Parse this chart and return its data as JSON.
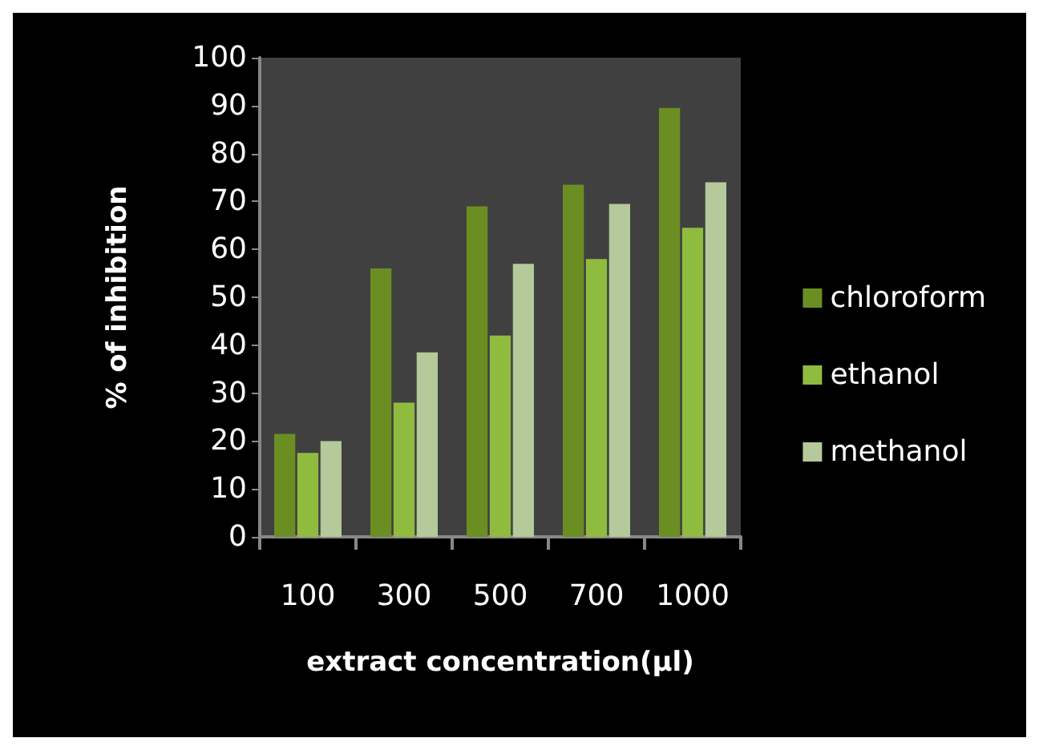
{
  "chart_data": {
    "type": "bar",
    "xlabel": "extract concentration(µl)",
    "ylabel": "% of inhibition",
    "categories": [
      "100",
      "300",
      "500",
      "700",
      "1000"
    ],
    "series": [
      {
        "name": "chloroform",
        "color": "#6b8e23",
        "values": [
          21.5,
          56,
          69,
          73.5,
          89.5
        ]
      },
      {
        "name": "ethanol",
        "color": "#8fbc3f",
        "values": [
          17.5,
          28,
          42,
          58,
          64.5
        ]
      },
      {
        "name": "methanol",
        "color": "#b5c99a",
        "values": [
          20,
          38.5,
          57,
          69.5,
          74
        ]
      }
    ],
    "ylim": [
      0,
      100
    ],
    "yticks": [
      0,
      10,
      20,
      30,
      40,
      50,
      60,
      70,
      80,
      90,
      100
    ],
    "grid": false,
    "legend": "right"
  }
}
